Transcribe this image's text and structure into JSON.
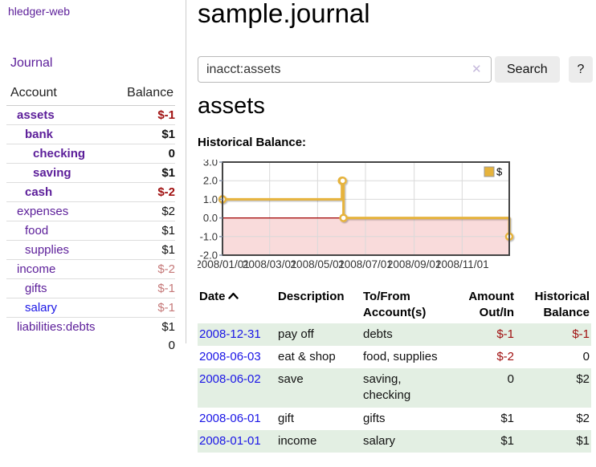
{
  "colors": {
    "link_purple": "#5b1d99",
    "link_blue": "#1a15e6",
    "negative_strong": "#a01010",
    "negative_soft": "#c57878",
    "row_green": "#e3efe3"
  },
  "app": {
    "brand": "hledger-web"
  },
  "sidebar": {
    "journal_link": "Journal",
    "accounts_table": {
      "headers": {
        "account": "Account",
        "balance": "Balance"
      },
      "rows": [
        {
          "name": "assets",
          "level": 0,
          "bold": true,
          "balance": "$-1",
          "balance_color": "negative-strong"
        },
        {
          "name": "bank",
          "level": 1,
          "bold": true,
          "balance": "$1",
          "balance_color": "normal"
        },
        {
          "name": "checking",
          "level": 2,
          "bold": true,
          "balance": "0",
          "balance_color": "normal"
        },
        {
          "name": "saving",
          "level": 2,
          "bold": true,
          "balance": "$1",
          "balance_color": "normal"
        },
        {
          "name": "cash",
          "level": 1,
          "bold": true,
          "balance": "$-2",
          "balance_color": "negative-strong"
        },
        {
          "name": "expenses",
          "level": 0,
          "bold": false,
          "balance": "$2",
          "balance_color": "normal"
        },
        {
          "name": "food",
          "level": 1,
          "bold": false,
          "balance": "$1",
          "balance_color": "normal"
        },
        {
          "name": "supplies",
          "level": 1,
          "bold": false,
          "balance": "$1",
          "balance_color": "normal"
        },
        {
          "name": "income",
          "level": 0,
          "bold": false,
          "balance": "$-2",
          "balance_color": "negative-soft"
        },
        {
          "name": "gifts",
          "level": 1,
          "bold": false,
          "balance": "$-1",
          "balance_color": "negative-soft"
        },
        {
          "name": "salary",
          "level": 1,
          "bold": false,
          "link_style": "unvisited",
          "balance": "$-1",
          "balance_color": "negative-soft"
        },
        {
          "name": "liabilities:debts",
          "level": 0,
          "bold": false,
          "balance": "$1",
          "balance_color": "normal"
        }
      ],
      "total": "0"
    }
  },
  "main": {
    "title": "sample.journal",
    "search": {
      "value": "inacct:assets",
      "clear_icon": "✕",
      "button_label": "Search",
      "help_label": "?"
    },
    "account_heading": "assets",
    "chart_heading": "Historical Balance:"
  },
  "chart_data": {
    "type": "line",
    "title": "Historical Balance:",
    "step": true,
    "series": [
      {
        "name": "$",
        "color": "#e6b33c",
        "points": [
          [
            "2008-01-01",
            1
          ],
          [
            "2008-06-01",
            2
          ],
          [
            "2008-06-02",
            2
          ],
          [
            "2008-06-03",
            0
          ],
          [
            "2008-12-31",
            -1
          ]
        ]
      }
    ],
    "x_domain": [
      "2008-01-01",
      "2008-12-31"
    ],
    "x_tick_labels": [
      "2008/01/01",
      "2008/03/01",
      "2008/05/01",
      "2008/07/01",
      "2008/09/01",
      "2008/11/01"
    ],
    "y_ticks": [
      3.0,
      2.0,
      1.0,
      0.0,
      -1.0,
      -2.0
    ],
    "ylim": [
      -2,
      3
    ],
    "grid": true,
    "legend_position": "top-right",
    "negative_fill": "#f9dbdb",
    "zero_line_color": "#a00000",
    "border_color": "#444444",
    "grid_color": "#d9d9d9",
    "tick_text_color": "#333333"
  },
  "register_table": {
    "headers": {
      "date": "Date",
      "description": "Description",
      "account": "To/From Account(s)",
      "amount": "Amount Out/In",
      "balance": "Historical Balance"
    },
    "rows": [
      {
        "date": "2008-12-31",
        "description": "pay off",
        "accounts": "debts",
        "amount": "$-1",
        "amount_negative": true,
        "balance": "$-1",
        "balance_negative": true
      },
      {
        "date": "2008-06-03",
        "description": "eat & shop",
        "accounts": "food, supplies",
        "amount": "$-2",
        "amount_negative": true,
        "balance": "0",
        "balance_negative": false
      },
      {
        "date": "2008-06-02",
        "description": "save",
        "accounts": "saving, checking",
        "amount": "0",
        "amount_negative": false,
        "balance": "$2",
        "balance_negative": false
      },
      {
        "date": "2008-06-01",
        "description": "gift",
        "accounts": "gifts",
        "amount": "$1",
        "amount_negative": false,
        "balance": "$2",
        "balance_negative": false
      },
      {
        "date": "2008-01-01",
        "description": "income",
        "accounts": "salary",
        "amount": "$1",
        "amount_negative": false,
        "balance": "$1",
        "balance_negative": false
      }
    ]
  }
}
